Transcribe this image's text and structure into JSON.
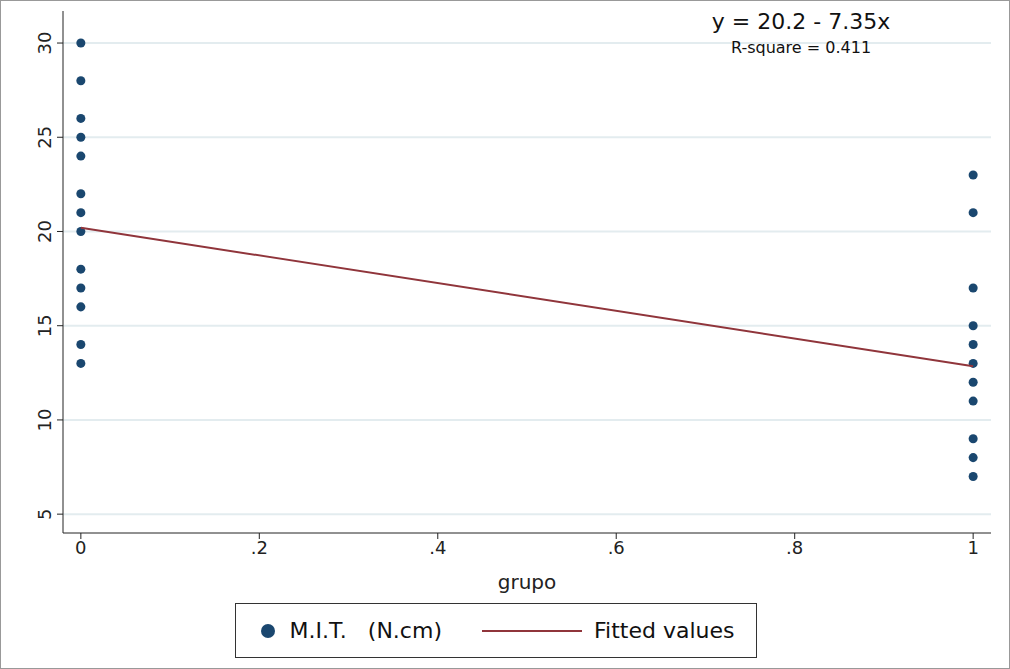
{
  "chart_data": {
    "type": "scatter",
    "x_label": "grupo",
    "annotations": [
      "y = 20.2 - 7.35x",
      "R-square = 0.411"
    ],
    "series": [
      {
        "name": "M.I.T.   (N.cm)",
        "type": "scatter",
        "marker": "circle",
        "color": "#1a476f",
        "x": [
          0,
          0,
          0,
          0,
          0,
          0,
          0,
          0,
          0,
          0,
          0,
          0,
          0,
          1,
          1,
          1,
          1,
          1,
          1,
          1,
          1,
          1,
          1,
          1
        ],
        "values": [
          30,
          28,
          26,
          25,
          24,
          22,
          21,
          20,
          18,
          17,
          16,
          14,
          13,
          23,
          21,
          17,
          15,
          14,
          13,
          12,
          11,
          9,
          8,
          7
        ]
      },
      {
        "name": "Fitted values",
        "type": "line",
        "color": "#90353b",
        "x": [
          0,
          1
        ],
        "values": [
          20.2,
          12.85
        ]
      }
    ],
    "xlim": [
      -0.02,
      1.02
    ],
    "xticks": [
      0,
      {
        "value": 0.2,
        "label": ".2"
      },
      {
        "value": 0.4,
        "label": ".4"
      },
      {
        "value": 0.6,
        "label": ".6"
      },
      {
        "value": 0.8,
        "label": ".8"
      },
      1
    ],
    "ylim": [
      4,
      31.7
    ],
    "yticks": [
      5,
      10,
      15,
      20,
      25,
      30
    ],
    "grid": true,
    "legend": "bottom"
  }
}
